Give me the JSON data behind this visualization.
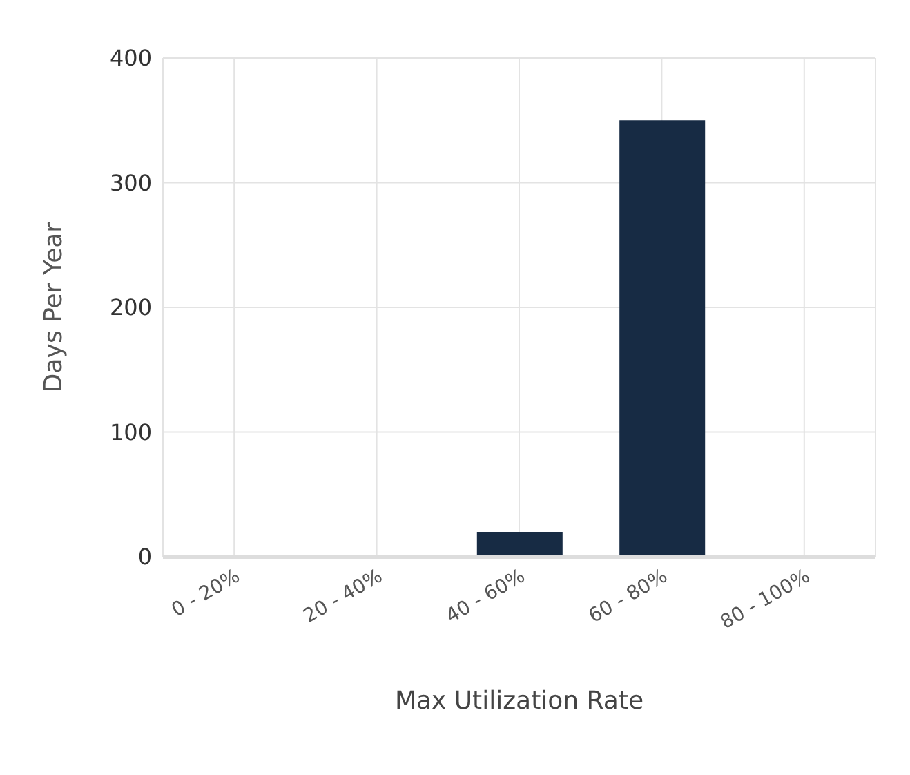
{
  "chart_data": {
    "type": "bar",
    "xlabel": "Max Utilization Rate",
    "ylabel": "Days Per Year",
    "categories": [
      "0 - 20%",
      "20 - 40%",
      "40 - 60%",
      "60 - 80%",
      "80 - 100%"
    ],
    "values": [
      0,
      0,
      20,
      350,
      0
    ],
    "color": "#172b44",
    "ylim": [
      0,
      400
    ],
    "yticks": [
      0,
      100,
      200,
      300,
      400
    ],
    "grid": true
  }
}
